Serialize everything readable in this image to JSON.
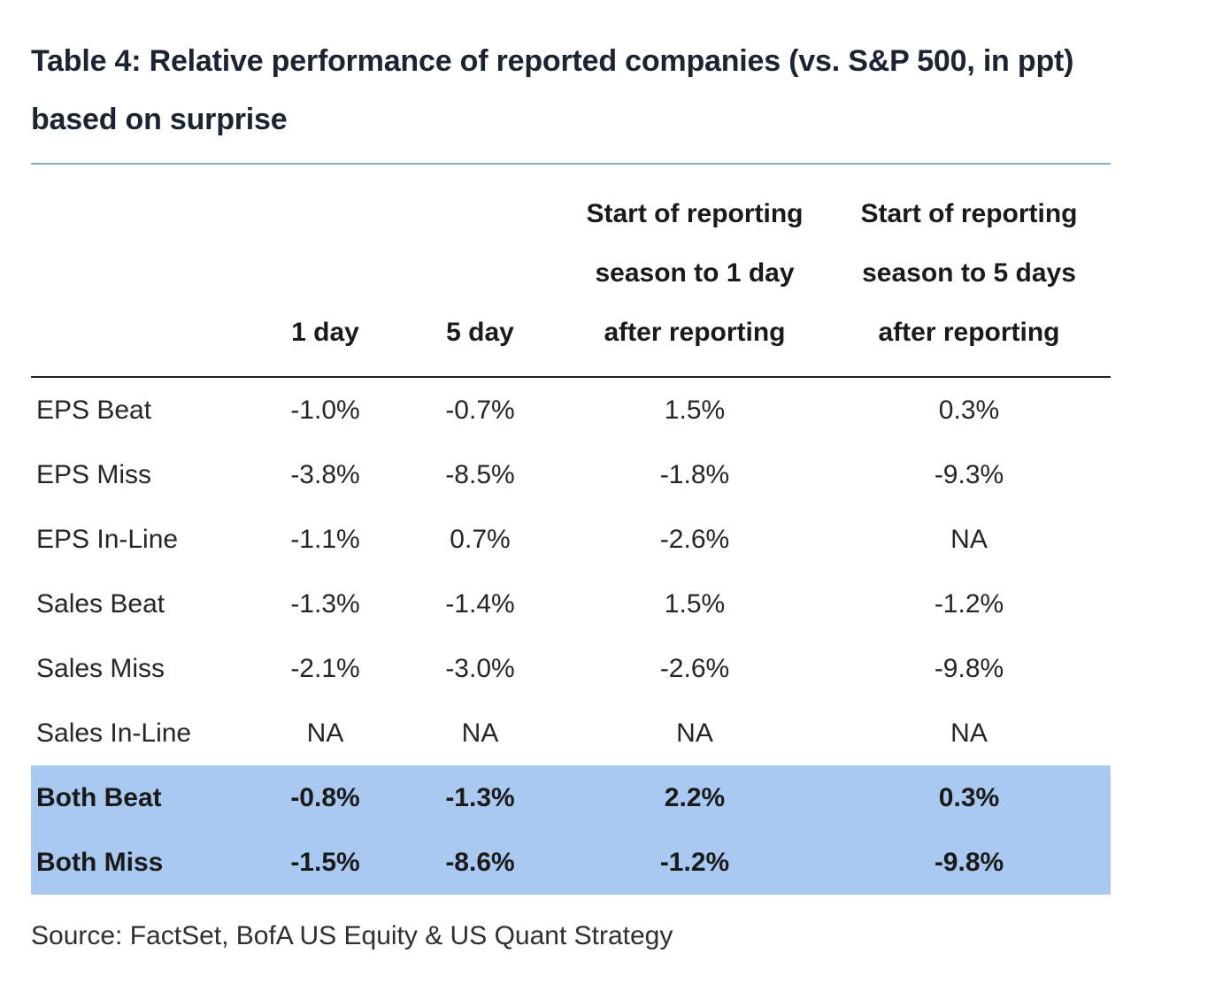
{
  "title": "Table 4: Relative performance of reported companies (vs. S&P 500, in ppt) based on surprise",
  "source": "Source: FactSet, BofA US Equity & US Quant Strategy",
  "colors": {
    "highlight_row": "#a9c9f1",
    "title_divider": "#8ba7bd",
    "header_rule": "#222222"
  },
  "chart_data": {
    "type": "table",
    "title": "Table 4: Relative performance of reported companies (vs. S&P 500, in ppt) based on surprise",
    "columns": [
      "1 day",
      "5 day",
      "Start of reporting season to 1 day after reporting",
      "Start of reporting season to 5 days after reporting"
    ],
    "rows": [
      {
        "label": "EPS Beat",
        "values": [
          "-1.0%",
          "-0.7%",
          "1.5%",
          "0.3%"
        ],
        "highlight": false
      },
      {
        "label": "EPS Miss",
        "values": [
          "-3.8%",
          "-8.5%",
          "-1.8%",
          "-9.3%"
        ],
        "highlight": false
      },
      {
        "label": "EPS In-Line",
        "values": [
          "-1.1%",
          "0.7%",
          "-2.6%",
          "NA"
        ],
        "highlight": false
      },
      {
        "label": "Sales Beat",
        "values": [
          "-1.3%",
          "-1.4%",
          "1.5%",
          "-1.2%"
        ],
        "highlight": false
      },
      {
        "label": "Sales Miss",
        "values": [
          "-2.1%",
          "-3.0%",
          "-2.6%",
          "-9.8%"
        ],
        "highlight": false
      },
      {
        "label": "Sales In-Line",
        "values": [
          "NA",
          "NA",
          "NA",
          "NA"
        ],
        "highlight": false
      },
      {
        "label": "Both Beat",
        "values": [
          "-0.8%",
          "-1.3%",
          "2.2%",
          "0.3%"
        ],
        "highlight": true
      },
      {
        "label": "Both Miss",
        "values": [
          "-1.5%",
          "-8.6%",
          "-1.2%",
          "-9.8%"
        ],
        "highlight": true
      }
    ]
  }
}
